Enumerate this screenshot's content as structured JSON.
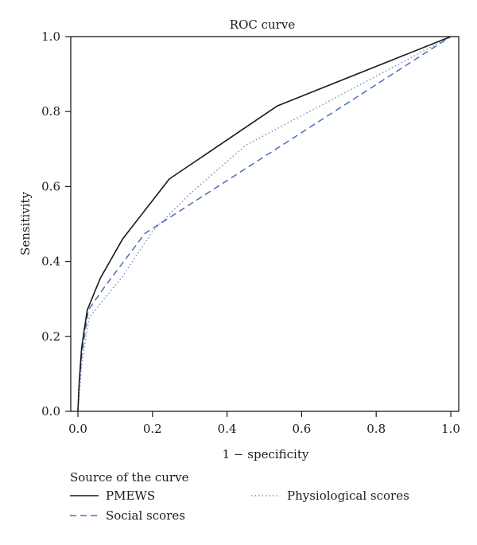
{
  "chart_data": {
    "type": "line",
    "title": "ROC curve",
    "xlabel": "1 − specificity",
    "ylabel": "Sensitivity",
    "xlim": [
      0.0,
      1.0
    ],
    "ylim": [
      0.0,
      1.0
    ],
    "xticks": [
      "0.0",
      "0.2",
      "0.4",
      "0.6",
      "0.8",
      "1.0"
    ],
    "yticks": [
      "0.0",
      "0.2",
      "0.4",
      "0.6",
      "0.8",
      "1.0"
    ],
    "grid": false,
    "legend": {
      "title": "Source of the curve",
      "placement": "bottom"
    },
    "series": [
      {
        "name": "PMEWS",
        "color": "#1a1a1a",
        "style": "solid",
        "x": [
          0.0,
          0.003,
          0.01,
          0.025,
          0.06,
          0.12,
          0.245,
          0.535,
          1.0
        ],
        "y": [
          0.0,
          0.07,
          0.17,
          0.27,
          0.355,
          0.46,
          0.62,
          0.815,
          1.0
        ]
      },
      {
        "name": "Social scores",
        "color": "#4a6fb5",
        "style": "dashed",
        "x": [
          0.0,
          0.003,
          0.01,
          0.028,
          0.07,
          0.18,
          1.0
        ],
        "y": [
          0.0,
          0.06,
          0.15,
          0.27,
          0.33,
          0.475,
          1.0
        ]
      },
      {
        "name": "Physiological scores",
        "color": "#7f8fc4",
        "style": "dotted",
        "x": [
          0.0,
          0.004,
          0.012,
          0.03,
          0.07,
          0.12,
          0.2,
          0.3,
          0.45,
          1.0
        ],
        "y": [
          0.0,
          0.05,
          0.14,
          0.25,
          0.3,
          0.36,
          0.48,
          0.58,
          0.71,
          1.0
        ]
      }
    ]
  }
}
